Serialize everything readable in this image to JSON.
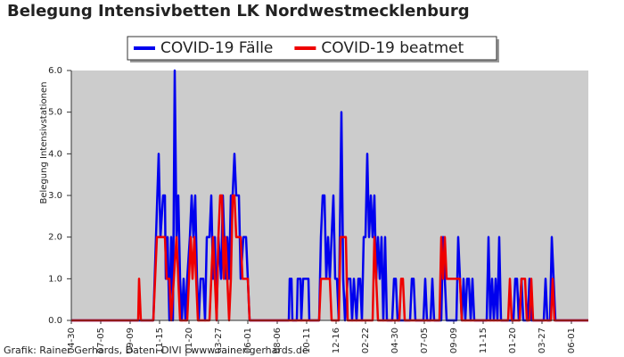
{
  "chart_data": {
    "type": "line",
    "title": "Belegung Intensivbetten LK Nordwestmecklenburg",
    "ylabel": "Belegung Intensivstationen",
    "footer": "Grafik: Rainer Gerhards, Daten: DIVI | www.rainer-gerhards.de",
    "background": "#cccccc",
    "legend": "top",
    "xlim": [
      0,
      1160
    ],
    "ylim": [
      0,
      6
    ],
    "yticks": [
      {
        "value": 0,
        "label": "0.0"
      },
      {
        "value": 1,
        "label": "1.0"
      },
      {
        "value": 2,
        "label": "2.0"
      },
      {
        "value": 3,
        "label": "3.0"
      },
      {
        "value": 4,
        "label": "4.0"
      },
      {
        "value": 5,
        "label": "5.0"
      },
      {
        "value": 6,
        "label": "6.0"
      }
    ],
    "xticks": [
      {
        "value": 0,
        "label": "04-30"
      },
      {
        "value": 66,
        "label": "07-05"
      },
      {
        "value": 132,
        "label": "09-09"
      },
      {
        "value": 198,
        "label": "11-15"
      },
      {
        "value": 264,
        "label": "01-20"
      },
      {
        "value": 330,
        "label": "03-27"
      },
      {
        "value": 396,
        "label": "06-01"
      },
      {
        "value": 462,
        "label": "08-06"
      },
      {
        "value": 528,
        "label": "10-11"
      },
      {
        "value": 594,
        "label": "12-16"
      },
      {
        "value": 660,
        "label": "02-22"
      },
      {
        "value": 726,
        "label": "04-30"
      },
      {
        "value": 792,
        "label": "07-05"
      },
      {
        "value": 858,
        "label": "09-09"
      },
      {
        "value": 924,
        "label": "11-15"
      },
      {
        "value": 990,
        "label": "01-20"
      },
      {
        "value": 1056,
        "label": "03-27"
      },
      {
        "value": 1122,
        "label": "06-01"
      }
    ],
    "series": [
      {
        "name": "COVID-19 Fälle",
        "color": "#0000ee",
        "x": [
          0,
          184,
          190,
          196,
          200,
          206,
          210,
          212,
          216,
          220,
          224,
          228,
          232,
          236,
          240,
          244,
          248,
          252,
          256,
          260,
          266,
          270,
          274,
          278,
          282,
          286,
          290,
          296,
          300,
          304,
          310,
          314,
          318,
          322,
          326,
          330,
          336,
          340,
          346,
          350,
          354,
          358,
          362,
          366,
          370,
          376,
          380,
          386,
          392,
          396,
          400,
          488,
          490,
          494,
          496,
          506,
          508,
          514,
          516,
          520,
          532,
          534,
          556,
          560,
          564,
          568,
          572,
          576,
          580,
          584,
          588,
          592,
          596,
          600,
          606,
          610,
          614,
          620,
          626,
          630,
          634,
          640,
          644,
          648,
          652,
          656,
          660,
          664,
          668,
          672,
          676,
          680,
          684,
          688,
          692,
          696,
          700,
          704,
          708,
          720,
          724,
          728,
          732,
          760,
          764,
          768,
          772,
          790,
          794,
          798,
          806,
          810,
          814,
          830,
          834,
          838,
          842,
          864,
          868,
          872,
          876,
          880,
          884,
          888,
          892,
          896,
          900,
          904,
          932,
          936,
          940,
          944,
          948,
          952,
          956,
          960,
          964,
          992,
          996,
          1000,
          1004,
          1010,
          1014,
          1024,
          1028,
          1032,
          1060,
          1064,
          1068,
          1074,
          1078,
          1082,
          1086,
          1160
        ],
        "values": [
          0,
          0,
          2,
          4,
          2,
          3,
          3,
          1,
          2,
          0,
          2,
          0,
          6,
          2,
          3,
          1,
          0,
          1,
          0,
          1,
          2,
          3,
          2,
          3,
          1,
          0,
          1,
          1,
          0,
          2,
          2,
          3,
          1,
          2,
          0,
          2,
          1,
          3,
          1,
          2,
          1,
          3,
          3,
          4,
          3,
          3,
          1,
          2,
          2,
          1,
          0,
          0,
          1,
          1,
          0,
          0,
          1,
          1,
          0,
          1,
          1,
          0,
          0,
          2,
          3,
          3,
          1,
          2,
          1,
          2,
          3,
          1,
          1,
          0,
          5,
          1,
          0,
          1,
          1,
          0,
          1,
          0,
          1,
          1,
          0,
          2,
          2,
          4,
          2,
          3,
          2,
          3,
          1,
          2,
          1,
          2,
          0,
          2,
          0,
          0,
          1,
          1,
          0,
          0,
          1,
          1,
          0,
          0,
          1,
          0,
          0,
          1,
          0,
          0,
          2,
          1,
          0,
          0,
          2,
          1,
          0,
          1,
          0,
          1,
          1,
          0,
          1,
          0,
          0,
          2,
          0,
          1,
          0,
          1,
          0,
          2,
          0,
          0,
          1,
          1,
          0,
          1,
          0,
          0,
          1,
          0,
          0,
          1,
          0,
          0,
          2,
          1,
          0,
          0
        ]
      },
      {
        "name": "COVID-19 beatmet",
        "color": "#ee0000",
        "x": [
          0,
          150,
          152,
          156,
          184,
          188,
          192,
          210,
          214,
          220,
          224,
          236,
          240,
          244,
          260,
          264,
          268,
          272,
          276,
          280,
          284,
          310,
          314,
          318,
          322,
          326,
          330,
          334,
          338,
          342,
          346,
          350,
          354,
          358,
          362,
          366,
          370,
          380,
          384,
          396,
          400,
          556,
          560,
          580,
          584,
          600,
          604,
          616,
          620,
          676,
          680,
          684,
          688,
          736,
          740,
          744,
          748,
          826,
          830,
          834,
          838,
          842,
          872,
          876,
          980,
          984,
          988,
          1006,
          1010,
          1018,
          1022,
          1028,
          1032,
          1036,
          1076,
          1080,
          1084,
          1160
        ],
        "values": [
          0,
          0,
          1,
          0,
          0,
          1,
          2,
          2,
          1,
          1,
          0,
          2,
          1,
          0,
          0,
          1,
          2,
          1,
          2,
          1,
          0,
          0,
          1,
          2,
          1,
          0,
          2,
          3,
          3,
          1,
          2,
          1,
          0,
          1,
          3,
          3,
          2,
          2,
          1,
          1,
          0,
          0,
          1,
          1,
          0,
          0,
          2,
          2,
          0,
          0,
          2,
          1,
          0,
          0,
          1,
          1,
          0,
          0,
          2,
          1,
          2,
          1,
          1,
          0,
          0,
          1,
          0,
          0,
          1,
          1,
          0,
          0,
          1,
          0,
          0,
          1,
          0,
          0
        ]
      }
    ]
  }
}
